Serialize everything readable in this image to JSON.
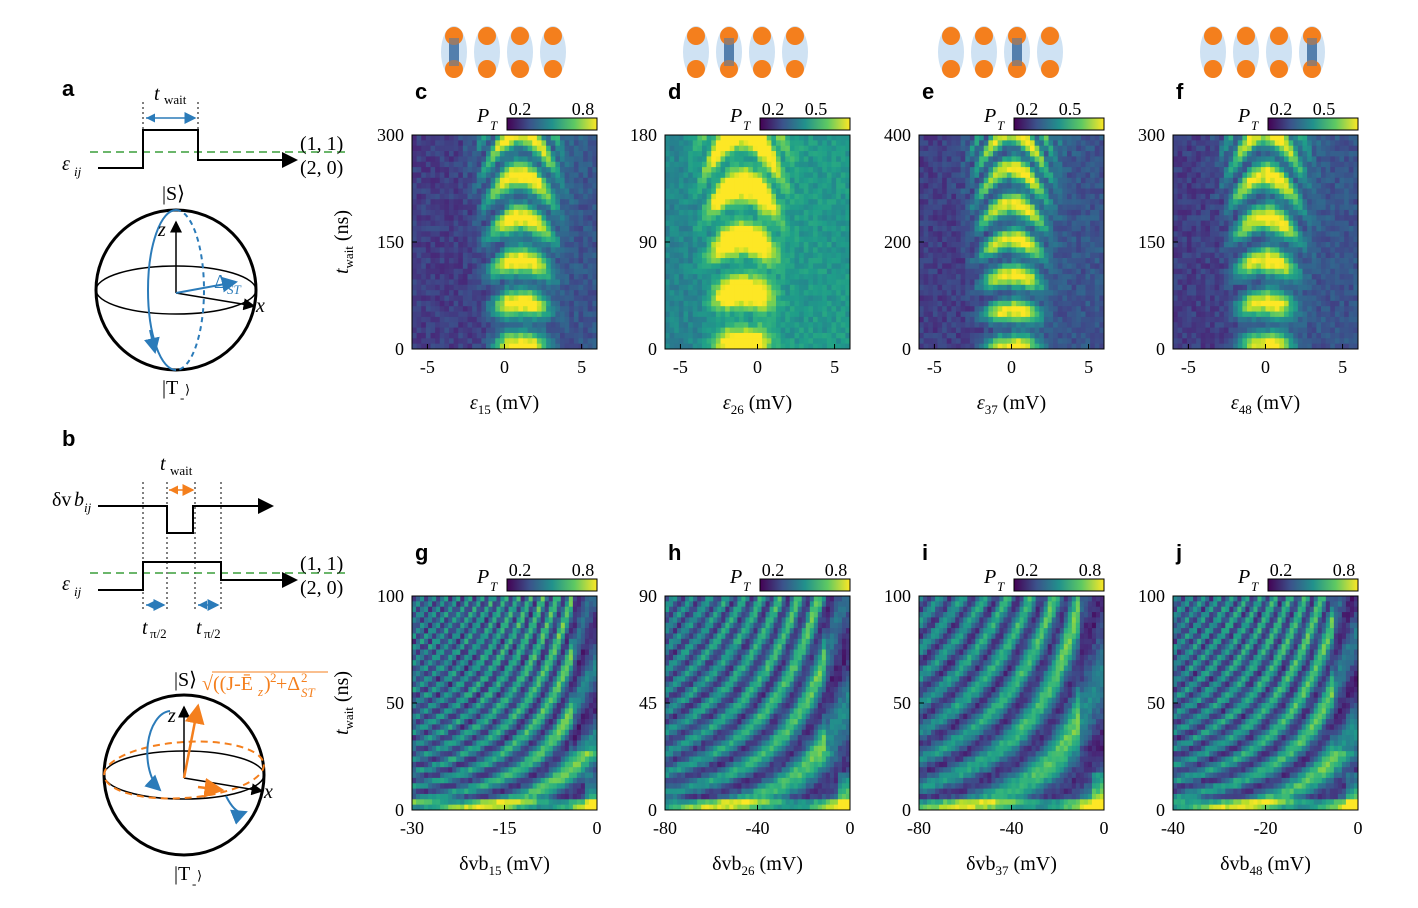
{
  "panel_labels": {
    "a": "a",
    "b": "b",
    "c": "c",
    "d": "d",
    "e": "e",
    "f": "f",
    "g": "g",
    "h": "h",
    "i": "i",
    "j": "j"
  },
  "schematic_a": {
    "twait_t": "t",
    "twait_sub": "wait",
    "state_11": "(1, 1)",
    "state_20": "(2, 0)",
    "eps": "ε",
    "eps_sub": "ij",
    "ket_S": "|S⟩",
    "ket_T": "|T",
    "axis_z": "z",
    "axis_x": "x",
    "delta": "Δ",
    "delta_sub": "ST"
  },
  "schematic_b": {
    "twait_t": "t",
    "twait_sub": "wait",
    "dvb": "δv",
    "dvb_b": "b",
    "dvb_sub": "ij",
    "eps": "ε",
    "eps_sub": "ij",
    "state_11": "(1, 1)",
    "state_20": "(2, 0)",
    "tpi_t": "t",
    "tpi_sub": "π/2",
    "ket_S": "|S⟩",
    "ket_T": "|T",
    "axis_z": "z",
    "axis_x": "x",
    "formula": "√((J-Ē",
    "formula_z": "z",
    "formula_mid": ")",
    "formula_sq": "2",
    "formula_plus": "+Δ",
    "formula_sq2": "2",
    "formula_st": "ST"
  },
  "colors": {
    "orange": "#f47f1d",
    "blue": "#2b7bb9",
    "green": "#3a9e3a",
    "dot_bg": "#cfe2f3"
  },
  "cbar": {
    "label": "P",
    "sub": "T"
  },
  "ylabel": {
    "t": "t",
    "sub": "wait",
    "unit": " (ns)"
  },
  "chart_data": [
    {
      "panel": "c",
      "type": "heatmap",
      "colorbar_ticks": [
        "0.2",
        "0.8"
      ],
      "xlabel": "ε",
      "xlabel_sub": "15",
      "xunit": " (mV)",
      "xlim": [
        -6,
        6
      ],
      "xticks": [
        "-5",
        "0",
        "5"
      ],
      "ylim": [
        0,
        300
      ],
      "yticks": [
        "0",
        "150",
        "300"
      ],
      "ylabel": "t_wait (ns)",
      "pattern": "chevron",
      "fringes": 5,
      "center": 1
    },
    {
      "panel": "d",
      "type": "heatmap",
      "colorbar_ticks": [
        "0.2",
        "0.5"
      ],
      "xlabel": "ε",
      "xlabel_sub": "26",
      "xunit": " (mV)",
      "xlim": [
        -6,
        6
      ],
      "xticks": [
        "-5",
        "0",
        "5"
      ],
      "ylim": [
        0,
        180
      ],
      "yticks": [
        "0",
        "90",
        "180"
      ],
      "pattern": "chevron",
      "fringes": 4,
      "center": -1
    },
    {
      "panel": "e",
      "type": "heatmap",
      "colorbar_ticks": [
        "0.2",
        "0.5"
      ],
      "xlabel": "ε",
      "xlabel_sub": "37",
      "xunit": " (mV)",
      "xlim": [
        -6,
        6
      ],
      "xticks": [
        "-5",
        "0",
        "5"
      ],
      "ylim": [
        0,
        400
      ],
      "yticks": [
        "0",
        "200",
        "400"
      ],
      "pattern": "chevron",
      "fringes": 6,
      "center": 0
    },
    {
      "panel": "f",
      "type": "heatmap",
      "colorbar_ticks": [
        "0.2",
        "0.5"
      ],
      "xlabel": "ε",
      "xlabel_sub": "48",
      "xunit": " (mV)",
      "xlim": [
        -6,
        6
      ],
      "xticks": [
        "-5",
        "0",
        "5"
      ],
      "ylim": [
        0,
        300
      ],
      "yticks": [
        "0",
        "150",
        "300"
      ],
      "pattern": "chevron",
      "fringes": 5,
      "center": 0
    },
    {
      "panel": "g",
      "type": "heatmap",
      "colorbar_ticks": [
        "0.2",
        "0.8"
      ],
      "xlabel": "δvb",
      "xlabel_sub": "15",
      "xunit": " (mV)",
      "xlim": [
        -30,
        0
      ],
      "xticks": [
        "-30",
        "-15",
        "0"
      ],
      "ylim": [
        0,
        100
      ],
      "yticks": [
        "0",
        "50",
        "100"
      ],
      "pattern": "hyperbolic",
      "fringes": 12
    },
    {
      "panel": "h",
      "type": "heatmap",
      "colorbar_ticks": [
        "0.2",
        "0.8"
      ],
      "xlabel": "δvb",
      "xlabel_sub": "26",
      "xunit": " (mV)",
      "xlim": [
        -80,
        0
      ],
      "xticks": [
        "-80",
        "-40",
        "0"
      ],
      "ylim": [
        0,
        90
      ],
      "yticks": [
        "0",
        "45",
        "90"
      ],
      "pattern": "hyperbolic",
      "fringes": 8
    },
    {
      "panel": "i",
      "type": "heatmap",
      "colorbar_ticks": [
        "0.2",
        "0.8"
      ],
      "xlabel": "δvb",
      "xlabel_sub": "37",
      "xunit": " (mV)",
      "xlim": [
        -80,
        0
      ],
      "xticks": [
        "-80",
        "-40",
        "0"
      ],
      "ylim": [
        0,
        100
      ],
      "yticks": [
        "0",
        "50",
        "100"
      ],
      "pattern": "hyperbolic",
      "fringes": 6
    },
    {
      "panel": "j",
      "type": "heatmap",
      "colorbar_ticks": [
        "0.2",
        "0.8"
      ],
      "xlabel": "δvb",
      "xlabel_sub": "48",
      "xunit": " (mV)",
      "xlim": [
        -40,
        0
      ],
      "xticks": [
        "-40",
        "-20",
        "0"
      ],
      "ylim": [
        0,
        100
      ],
      "yticks": [
        "0",
        "50",
        "100"
      ],
      "pattern": "hyperbolic",
      "fringes": 10
    }
  ]
}
